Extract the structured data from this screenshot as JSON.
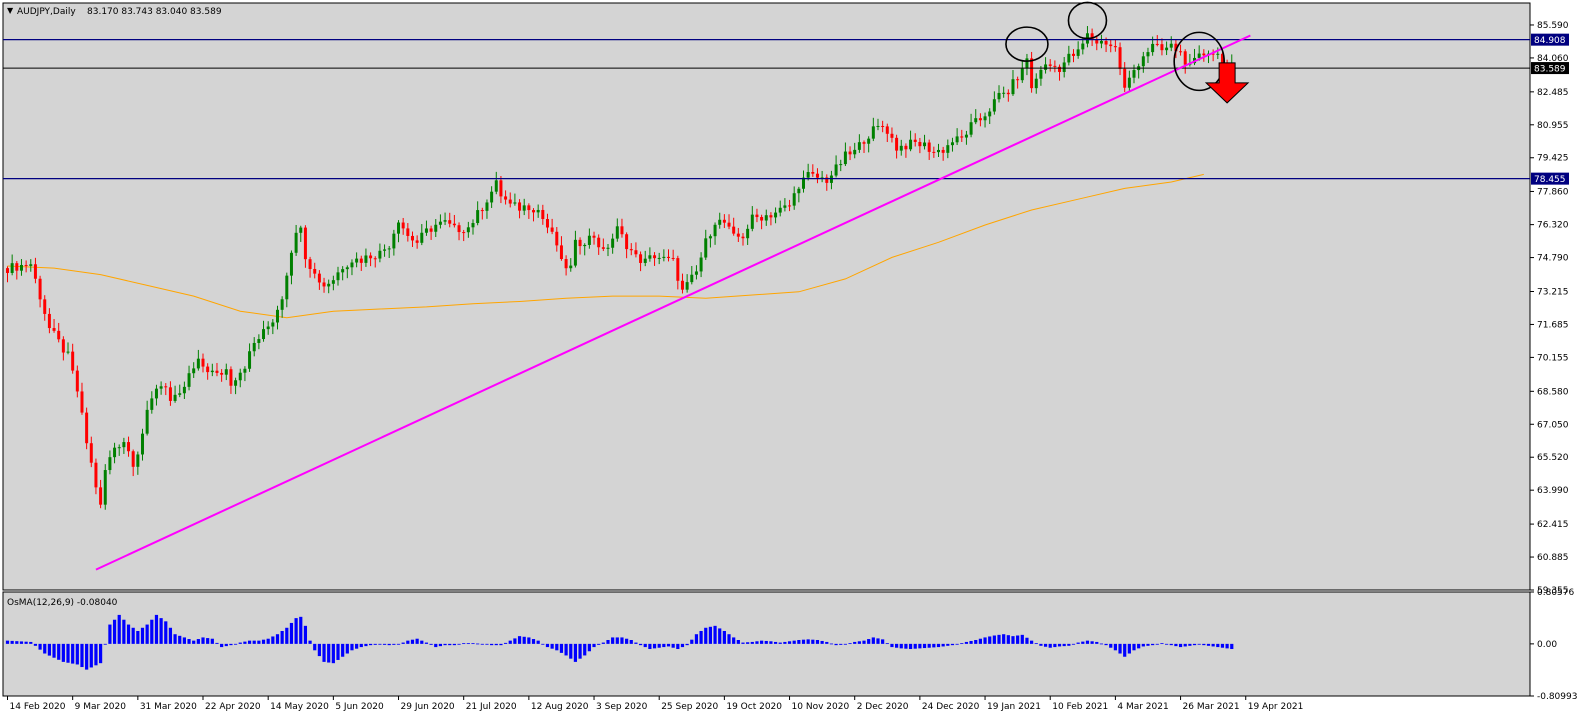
{
  "header": {
    "symbol": "AUDJPY,Daily",
    "ohlc": "83.170 83.743 83.040 83.589",
    "indicator": "OsMA(12,26,9) -0.08040"
  },
  "colors": {
    "background": "#d4d4d4",
    "bull": "#008000",
    "bear": "#ff0000",
    "trendline": "#ff00ff",
    "ma": "#ffa500",
    "hline": "#000080",
    "osma": "#0000ff",
    "arrow": "#ff0000"
  },
  "chart_data": {
    "type": "candlestick",
    "price_axis": {
      "range": [
        59.355,
        86.61
      ],
      "ticks": [
        "85.590",
        "84.060",
        "82.485",
        "80.955",
        "79.425",
        "77.860",
        "76.320",
        "74.790",
        "73.215",
        "71.685",
        "70.155",
        "68.580",
        "67.050",
        "65.520",
        "63.990",
        "62.415",
        "60.885",
        "59.355"
      ]
    },
    "osma_axis": {
      "range": [
        -0.80993,
        0.80576
      ],
      "ticks": [
        "0.80576",
        "0.00",
        "-0.80993"
      ]
    },
    "dates": [
      "14 Feb 2020",
      "9 Mar 2020",
      "31 Mar 2020",
      "22 Apr 2020",
      "14 May 2020",
      "5 Jun 2020",
      "29 Jun 2020",
      "21 Jul 2020",
      "12 Aug 2020",
      "3 Sep 2020",
      "25 Sep 2020",
      "19 Oct 2020",
      "10 Nov 2020",
      "2 Dec 2020",
      "24 Dec 2020",
      "19 Jan 2021",
      "10 Feb 2021",
      "4 Mar 2021",
      "26 Mar 2021",
      "19 Apr 2021"
    ],
    "close_path": [
      [
        0,
        74.3
      ],
      [
        5,
        74.5
      ],
      [
        9,
        71.5
      ],
      [
        13,
        70.2
      ],
      [
        15,
        68.6
      ],
      [
        17,
        66.2
      ],
      [
        19,
        64.2
      ],
      [
        20,
        63.2
      ],
      [
        21,
        64.9
      ],
      [
        23,
        66.0
      ],
      [
        25,
        66.3
      ],
      [
        27,
        65.3
      ],
      [
        28,
        65.8
      ],
      [
        30,
        67.5
      ],
      [
        32,
        68.8
      ],
      [
        34,
        68.9
      ],
      [
        35,
        68.1
      ],
      [
        37,
        68.3
      ],
      [
        39,
        69.3
      ],
      [
        41,
        69.9
      ],
      [
        43,
        69.6
      ],
      [
        45,
        69.3
      ],
      [
        47,
        69.6
      ],
      [
        48,
        69.0
      ],
      [
        51,
        69.8
      ],
      [
        53,
        70.8
      ],
      [
        55,
        71.3
      ],
      [
        57,
        71.9
      ],
      [
        59,
        73.0
      ],
      [
        61,
        75.2
      ],
      [
        63,
        76.4
      ],
      [
        64,
        74.9
      ],
      [
        66,
        74.0
      ],
      [
        68,
        73.5
      ],
      [
        70,
        73.8
      ],
      [
        72,
        74.4
      ],
      [
        74,
        74.7
      ],
      [
        76,
        74.7
      ],
      [
        78,
        74.9
      ],
      [
        80,
        75.0
      ],
      [
        82,
        75.4
      ],
      [
        84,
        76.6
      ],
      [
        86,
        75.8
      ],
      [
        88,
        75.5
      ],
      [
        90,
        76.0
      ],
      [
        92,
        76.3
      ],
      [
        94,
        76.4
      ],
      [
        96,
        76.1
      ],
      [
        99,
        76.2
      ],
      [
        101,
        76.8
      ],
      [
        103,
        77.5
      ],
      [
        105,
        78.2
      ],
      [
        106,
        77.7
      ],
      [
        108,
        77.2
      ],
      [
        110,
        77.1
      ],
      [
        112,
        77.2
      ],
      [
        114,
        77.0
      ],
      [
        116,
        76.2
      ],
      [
        118,
        75.4
      ],
      [
        119,
        74.5
      ],
      [
        121,
        74.3
      ],
      [
        122,
        75.4
      ],
      [
        124,
        75.6
      ],
      [
        126,
        75.8
      ],
      [
        128,
        75.0
      ],
      [
        130,
        75.7
      ],
      [
        131,
        76.1
      ],
      [
        133,
        75.4
      ],
      [
        135,
        74.8
      ],
      [
        137,
        74.6
      ],
      [
        139,
        74.9
      ],
      [
        141,
        74.7
      ],
      [
        143,
        74.6
      ],
      [
        145,
        73.2
      ],
      [
        148,
        74.1
      ],
      [
        150,
        75.5
      ],
      [
        152,
        76.5
      ],
      [
        154,
        76.4
      ],
      [
        156,
        75.7
      ],
      [
        158,
        75.8
      ],
      [
        160,
        76.6
      ],
      [
        162,
        76.7
      ],
      [
        164,
        76.8
      ],
      [
        166,
        77.0
      ],
      [
        168,
        77.2
      ],
      [
        170,
        78.2
      ],
      [
        172,
        78.6
      ],
      [
        174,
        78.5
      ],
      [
        176,
        78.4
      ],
      [
        178,
        78.9
      ],
      [
        180,
        79.5
      ],
      [
        182,
        79.7
      ],
      [
        184,
        80.3
      ],
      [
        186,
        80.7
      ],
      [
        188,
        80.9
      ],
      [
        189,
        80.7
      ],
      [
        191,
        79.9
      ],
      [
        193,
        80.0
      ],
      [
        195,
        80.1
      ],
      [
        197,
        80.0
      ],
      [
        199,
        79.7
      ],
      [
        201,
        79.8
      ],
      [
        203,
        80.2
      ],
      [
        205,
        80.3
      ],
      [
        207,
        80.9
      ],
      [
        209,
        81.2
      ],
      [
        211,
        81.7
      ],
      [
        213,
        82.3
      ],
      [
        215,
        82.5
      ],
      [
        217,
        83.2
      ],
      [
        218,
        83.4
      ],
      [
        219,
        84.1
      ],
      [
        220,
        82.6
      ],
      [
        222,
        83.6
      ],
      [
        224,
        83.7
      ],
      [
        226,
        83.6
      ],
      [
        228,
        84.1
      ],
      [
        230,
        84.3
      ],
      [
        232,
        85.1
      ],
      [
        234,
        84.8
      ],
      [
        236,
        84.8
      ],
      [
        238,
        84.5
      ],
      [
        239,
        83.6
      ],
      [
        240,
        82.6
      ],
      [
        242,
        83.5
      ],
      [
        244,
        84.2
      ],
      [
        246,
        84.6
      ],
      [
        248,
        84.4
      ],
      [
        250,
        84.6
      ],
      [
        252,
        84.3
      ],
      [
        254,
        83.6
      ],
      [
        256,
        84.1
      ],
      [
        258,
        84.4
      ],
      [
        260,
        84.2
      ],
      [
        262,
        83.6
      ],
      [
        263,
        83.59
      ]
    ],
    "ma_path": [
      [
        0,
        74.4
      ],
      [
        10,
        74.3
      ],
      [
        20,
        74.0
      ],
      [
        30,
        73.5
      ],
      [
        40,
        73.0
      ],
      [
        50,
        72.3
      ],
      [
        60,
        72.0
      ],
      [
        70,
        72.3
      ],
      [
        80,
        72.4
      ],
      [
        90,
        72.5
      ],
      [
        100,
        72.65
      ],
      [
        110,
        72.75
      ],
      [
        120,
        72.9
      ],
      [
        130,
        73.0
      ],
      [
        140,
        73.0
      ],
      [
        150,
        72.9
      ],
      [
        160,
        73.05
      ],
      [
        170,
        73.2
      ],
      [
        180,
        73.8
      ],
      [
        190,
        74.8
      ],
      [
        200,
        75.5
      ],
      [
        210,
        76.3
      ],
      [
        220,
        77.0
      ],
      [
        230,
        77.5
      ],
      [
        240,
        78.0
      ],
      [
        250,
        78.3
      ],
      [
        257,
        78.65
      ]
    ],
    "osma_path": [
      [
        0,
        0.05
      ],
      [
        5,
        0.03
      ],
      [
        8,
        -0.15
      ],
      [
        12,
        -0.28
      ],
      [
        15,
        -0.32
      ],
      [
        17,
        -0.4
      ],
      [
        20,
        -0.3
      ],
      [
        22,
        0.3
      ],
      [
        24,
        0.45
      ],
      [
        26,
        0.3
      ],
      [
        28,
        0.2
      ],
      [
        30,
        0.3
      ],
      [
        32,
        0.45
      ],
      [
        34,
        0.35
      ],
      [
        36,
        0.15
      ],
      [
        38,
        0.1
      ],
      [
        40,
        0.05
      ],
      [
        42,
        0.1
      ],
      [
        44,
        0.08
      ],
      [
        46,
        -0.05
      ],
      [
        48,
        -0.02
      ],
      [
        50,
        0.02
      ],
      [
        52,
        0.05
      ],
      [
        54,
        0.05
      ],
      [
        56,
        0.08
      ],
      [
        58,
        0.15
      ],
      [
        60,
        0.25
      ],
      [
        62,
        0.4
      ],
      [
        63,
        0.42
      ],
      [
        64,
        0.28
      ],
      [
        65,
        0.05
      ],
      [
        66,
        -0.1
      ],
      [
        68,
        -0.28
      ],
      [
        70,
        -0.3
      ],
      [
        72,
        -0.2
      ],
      [
        74,
        -0.1
      ],
      [
        76,
        -0.05
      ],
      [
        78,
        -0.02
      ],
      [
        80,
        -0.01
      ],
      [
        82,
        -0.02
      ],
      [
        84,
        -0.01
      ],
      [
        86,
        0.05
      ],
      [
        88,
        0.08
      ],
      [
        90,
        0.02
      ],
      [
        92,
        -0.05
      ],
      [
        94,
        -0.02
      ],
      [
        96,
        -0.02
      ],
      [
        98,
        0.01
      ],
      [
        100,
        0.01
      ],
      [
        102,
        0.0
      ],
      [
        104,
        -0.02
      ],
      [
        106,
        -0.02
      ],
      [
        108,
        0.05
      ],
      [
        110,
        0.12
      ],
      [
        112,
        0.1
      ],
      [
        114,
        0.05
      ],
      [
        116,
        -0.05
      ],
      [
        118,
        -0.1
      ],
      [
        120,
        -0.18
      ],
      [
        122,
        -0.28
      ],
      [
        124,
        -0.18
      ],
      [
        126,
        -0.05
      ],
      [
        128,
        0.02
      ],
      [
        130,
        0.1
      ],
      [
        132,
        0.1
      ],
      [
        134,
        0.06
      ],
      [
        136,
        -0.02
      ],
      [
        138,
        -0.08
      ],
      [
        140,
        -0.06
      ],
      [
        142,
        -0.04
      ],
      [
        144,
        -0.08
      ],
      [
        146,
        -0.02
      ],
      [
        148,
        0.15
      ],
      [
        150,
        0.25
      ],
      [
        152,
        0.28
      ],
      [
        154,
        0.2
      ],
      [
        156,
        0.1
      ],
      [
        158,
        0.02
      ],
      [
        160,
        0.03
      ],
      [
        162,
        0.05
      ],
      [
        164,
        0.04
      ],
      [
        166,
        0.02
      ],
      [
        168,
        0.04
      ],
      [
        170,
        0.06
      ],
      [
        172,
        0.07
      ],
      [
        174,
        0.06
      ],
      [
        176,
        0.03
      ],
      [
        178,
        -0.02
      ],
      [
        180,
        -0.01
      ],
      [
        182,
        0.03
      ],
      [
        184,
        0.05
      ],
      [
        186,
        0.1
      ],
      [
        188,
        0.07
      ],
      [
        190,
        -0.05
      ],
      [
        192,
        -0.07
      ],
      [
        194,
        -0.08
      ],
      [
        196,
        -0.07
      ],
      [
        198,
        -0.06
      ],
      [
        200,
        -0.05
      ],
      [
        202,
        -0.03
      ],
      [
        204,
        -0.01
      ],
      [
        206,
        0.03
      ],
      [
        208,
        0.06
      ],
      [
        210,
        0.1
      ],
      [
        212,
        0.13
      ],
      [
        214,
        0.15
      ],
      [
        216,
        0.12
      ],
      [
        218,
        0.14
      ],
      [
        220,
        0.05
      ],
      [
        222,
        -0.03
      ],
      [
        224,
        -0.06
      ],
      [
        226,
        -0.04
      ],
      [
        228,
        -0.03
      ],
      [
        230,
        0.02
      ],
      [
        232,
        0.05
      ],
      [
        234,
        0.03
      ],
      [
        236,
        -0.02
      ],
      [
        238,
        -0.1
      ],
      [
        240,
        -0.2
      ],
      [
        242,
        -0.1
      ],
      [
        244,
        -0.04
      ],
      [
        246,
        -0.02
      ],
      [
        248,
        0.01
      ],
      [
        250,
        -0.02
      ],
      [
        252,
        -0.05
      ],
      [
        254,
        -0.03
      ],
      [
        256,
        -0.01
      ],
      [
        258,
        -0.03
      ],
      [
        260,
        -0.05
      ],
      [
        262,
        -0.07
      ],
      [
        263,
        -0.08
      ]
    ],
    "horizontal_lines": [
      {
        "value": 84.908,
        "label": "84.908"
      },
      {
        "value": 78.455,
        "label": "78.455"
      }
    ],
    "current_price": {
      "value": 83.589,
      "label": "83.589"
    },
    "trendline": {
      "x": [
        19,
        267
      ],
      "y": [
        60.3,
        85.1
      ]
    },
    "circles": [
      [
        219,
        84.7
      ],
      [
        232,
        85.8
      ],
      [
        256,
        83.9
      ]
    ],
    "arrow": {
      "x": 262,
      "y": 82.9
    }
  }
}
